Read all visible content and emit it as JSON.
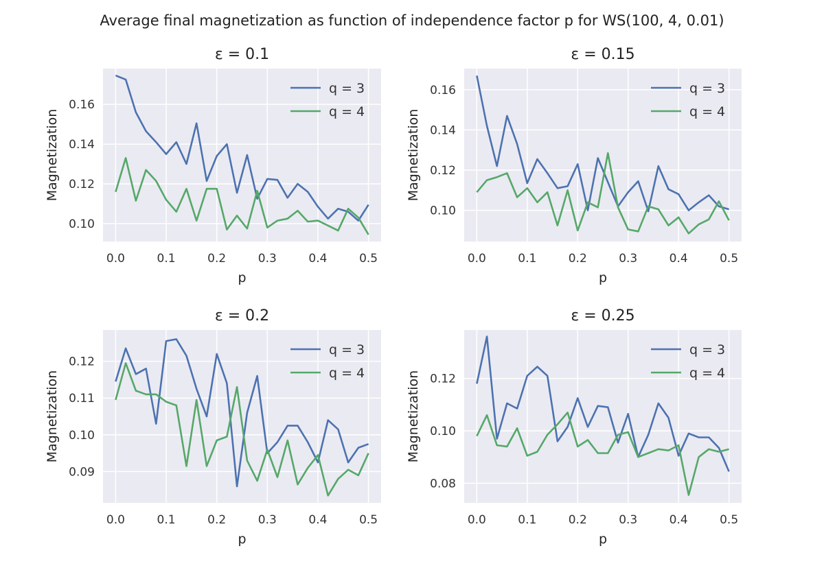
{
  "figure": {
    "suptitle": "Average final magnetization as function of independence factor p for WS(100, 4, 0.01)"
  },
  "colors": {
    "background": "#ffffff",
    "axes_face": "#eaeaf2",
    "grid": "#ffffff",
    "q3": "#4c72b0",
    "q4": "#55a868"
  },
  "chart_data": [
    {
      "type": "line",
      "title": "ε = 0.1",
      "xlabel": "p",
      "ylabel": "Magnetization",
      "xlim": [
        -0.025,
        0.525
      ],
      "ylim": [
        0.091,
        0.178
      ],
      "xticks": [
        0.0,
        0.1,
        0.2,
        0.3,
        0.4,
        0.5
      ],
      "yticks": [
        0.1,
        0.12,
        0.14,
        0.16
      ],
      "grid": true,
      "legend": "upper right",
      "x": [
        0.0,
        0.02,
        0.04,
        0.06,
        0.08,
        0.1,
        0.12,
        0.14,
        0.16,
        0.18,
        0.2,
        0.22,
        0.24,
        0.26,
        0.28,
        0.3,
        0.32,
        0.34,
        0.36,
        0.38,
        0.4,
        0.42,
        0.44,
        0.46,
        0.48,
        0.5
      ],
      "series": [
        {
          "name": "q = 3",
          "color_key": "q3",
          "values": [
            0.1745,
            0.1725,
            0.156,
            0.1465,
            0.141,
            0.135,
            0.141,
            0.13,
            0.1505,
            0.1215,
            0.134,
            0.14,
            0.1155,
            0.1345,
            0.1125,
            0.1225,
            0.122,
            0.113,
            0.12,
            0.116,
            0.1085,
            0.1025,
            0.1075,
            0.106,
            0.1015,
            0.1095
          ]
        },
        {
          "name": "q = 4",
          "color_key": "q4",
          "values": [
            0.116,
            0.133,
            0.1115,
            0.127,
            0.1215,
            0.112,
            0.106,
            0.1175,
            0.1015,
            0.1175,
            0.1175,
            0.097,
            0.104,
            0.0975,
            0.1165,
            0.098,
            0.1015,
            0.1025,
            0.1065,
            0.101,
            0.1015,
            0.099,
            0.0965,
            0.1075,
            0.103,
            0.0945
          ]
        }
      ]
    },
    {
      "type": "line",
      "title": "ε = 0.15",
      "xlabel": "p",
      "ylabel": "Magnetization",
      "xlim": [
        -0.025,
        0.525
      ],
      "ylim": [
        0.0845,
        0.1705
      ],
      "xticks": [
        0.0,
        0.1,
        0.2,
        0.3,
        0.4,
        0.5
      ],
      "yticks": [
        0.1,
        0.12,
        0.14,
        0.16
      ],
      "grid": true,
      "legend": "upper right",
      "x": [
        0.0,
        0.02,
        0.04,
        0.06,
        0.08,
        0.1,
        0.12,
        0.14,
        0.16,
        0.18,
        0.2,
        0.22,
        0.24,
        0.26,
        0.28,
        0.3,
        0.32,
        0.34,
        0.36,
        0.38,
        0.4,
        0.42,
        0.44,
        0.46,
        0.48,
        0.5
      ],
      "series": [
        {
          "name": "q = 3",
          "color_key": "q3",
          "values": [
            0.167,
            0.142,
            0.122,
            0.147,
            0.133,
            0.1135,
            0.1255,
            0.1185,
            0.111,
            0.112,
            0.123,
            0.1,
            0.126,
            0.114,
            0.102,
            0.109,
            0.1145,
            0.0995,
            0.122,
            0.1105,
            0.108,
            0.1,
            0.104,
            0.1075,
            0.102,
            0.1005
          ]
        },
        {
          "name": "q = 4",
          "color_key": "q4",
          "values": [
            0.109,
            0.115,
            0.1165,
            0.1185,
            0.1065,
            0.111,
            0.104,
            0.109,
            0.0925,
            0.11,
            0.09,
            0.104,
            0.1015,
            0.1285,
            0.1015,
            0.0905,
            0.0895,
            0.102,
            0.1005,
            0.0925,
            0.0965,
            0.0885,
            0.093,
            0.0955,
            0.1045,
            0.095
          ]
        }
      ]
    },
    {
      "type": "line",
      "title": "ε = 0.2",
      "xlabel": "p",
      "ylabel": "Magnetization",
      "xlim": [
        -0.025,
        0.525
      ],
      "ylim": [
        0.0815,
        0.1285
      ],
      "xticks": [
        0.0,
        0.1,
        0.2,
        0.3,
        0.4,
        0.5
      ],
      "yticks": [
        0.09,
        0.1,
        0.11,
        0.12
      ],
      "grid": true,
      "legend": "upper right",
      "x": [
        0.0,
        0.02,
        0.04,
        0.06,
        0.08,
        0.1,
        0.12,
        0.14,
        0.16,
        0.18,
        0.2,
        0.22,
        0.24,
        0.26,
        0.28,
        0.3,
        0.32,
        0.34,
        0.36,
        0.38,
        0.4,
        0.42,
        0.44,
        0.46,
        0.48,
        0.5
      ],
      "series": [
        {
          "name": "q = 3",
          "color_key": "q3",
          "values": [
            0.1145,
            0.1235,
            0.1165,
            0.118,
            0.103,
            0.1255,
            0.126,
            0.1215,
            0.1125,
            0.105,
            0.122,
            0.114,
            0.086,
            0.106,
            0.116,
            0.095,
            0.098,
            0.1025,
            0.1025,
            0.098,
            0.0925,
            0.104,
            0.1015,
            0.0925,
            0.0965,
            0.0975
          ]
        },
        {
          "name": "q = 4",
          "color_key": "q4",
          "values": [
            0.1095,
            0.1195,
            0.112,
            0.111,
            0.111,
            0.109,
            0.108,
            0.0915,
            0.1095,
            0.0915,
            0.0985,
            0.0995,
            0.113,
            0.093,
            0.0875,
            0.096,
            0.0885,
            0.0985,
            0.0865,
            0.091,
            0.0945,
            0.0835,
            0.088,
            0.0905,
            0.089,
            0.095
          ]
        }
      ]
    },
    {
      "type": "line",
      "title": "ε = 0.25",
      "xlabel": "p",
      "ylabel": "Magnetization",
      "xlim": [
        -0.025,
        0.525
      ],
      "ylim": [
        0.0725,
        0.1385
      ],
      "xticks": [
        0.0,
        0.1,
        0.2,
        0.3,
        0.4,
        0.5
      ],
      "yticks": [
        0.08,
        0.1,
        0.12
      ],
      "grid": true,
      "legend": "upper right",
      "x": [
        0.0,
        0.02,
        0.04,
        0.06,
        0.08,
        0.1,
        0.12,
        0.14,
        0.16,
        0.18,
        0.2,
        0.22,
        0.24,
        0.26,
        0.28,
        0.3,
        0.32,
        0.34,
        0.36,
        0.38,
        0.4,
        0.42,
        0.44,
        0.46,
        0.48,
        0.5
      ],
      "series": [
        {
          "name": "q = 3",
          "color_key": "q3",
          "values": [
            0.118,
            0.136,
            0.097,
            0.1105,
            0.1085,
            0.121,
            0.1245,
            0.121,
            0.096,
            0.1015,
            0.1125,
            0.1015,
            0.1095,
            0.109,
            0.0955,
            0.1065,
            0.09,
            0.0985,
            0.1105,
            0.105,
            0.0905,
            0.099,
            0.0975,
            0.0975,
            0.0935,
            0.0845
          ]
        },
        {
          "name": "q = 4",
          "color_key": "q4",
          "values": [
            0.098,
            0.106,
            0.0945,
            0.094,
            0.101,
            0.0905,
            0.092,
            0.0985,
            0.1025,
            0.107,
            0.094,
            0.0965,
            0.0915,
            0.0915,
            0.0985,
            0.0995,
            0.09,
            0.0915,
            0.093,
            0.0925,
            0.0945,
            0.0755,
            0.09,
            0.093,
            0.092,
            0.093
          ]
        }
      ]
    }
  ]
}
